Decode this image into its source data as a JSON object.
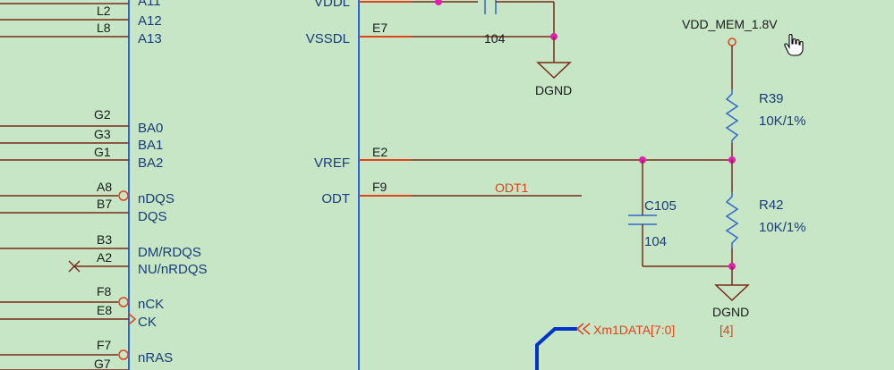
{
  "schematic": {
    "left_pins": [
      {
        "num": "L2",
        "name": "A12"
      },
      {
        "num": "L8",
        "name": "A13"
      },
      {
        "num": "G2",
        "name": "BA0"
      },
      {
        "num": "G3",
        "name": "BA1"
      },
      {
        "num": "G1",
        "name": "BA2"
      },
      {
        "num": "A8",
        "name": "nDQS"
      },
      {
        "num": "B7",
        "name": "DQS"
      },
      {
        "num": "B3",
        "name": "DM/RDQS"
      },
      {
        "num": "A2",
        "name": "NU/nRDQS"
      },
      {
        "num": "F8",
        "name": "nCK"
      },
      {
        "num": "E8",
        "name": "CK"
      },
      {
        "num": "F7",
        "name": "nRAS"
      },
      {
        "num": "G7",
        "name": ""
      }
    ],
    "top_partial_pin": "A11",
    "right_pins": [
      {
        "name": "VDDL",
        "num": ""
      },
      {
        "name": "VSSDL",
        "num": "E7"
      },
      {
        "name": "VREF",
        "num": "E2"
      },
      {
        "name": "ODT",
        "num": "F9"
      }
    ],
    "net_odt": "ODT1",
    "cap_top": "104",
    "ground_label": "DGND",
    "power_label": "VDD_MEM_1.8V",
    "r39": {
      "name": "R39",
      "value": "10K/1%"
    },
    "r42": {
      "name": "R42",
      "value": "10K/1%"
    },
    "c105": {
      "name": "C105",
      "value": "104"
    },
    "bus": {
      "name": "Xm1DATA[7:0]",
      "ref": "[4]"
    },
    "cursor_icon": "hand-pointer-icon",
    "colors": {
      "background": "#c6e6c6",
      "pin_text": "#1a3c7a",
      "net_text": "#e0441e",
      "junction": "#e020b0",
      "bus": "#0033cc"
    }
  }
}
